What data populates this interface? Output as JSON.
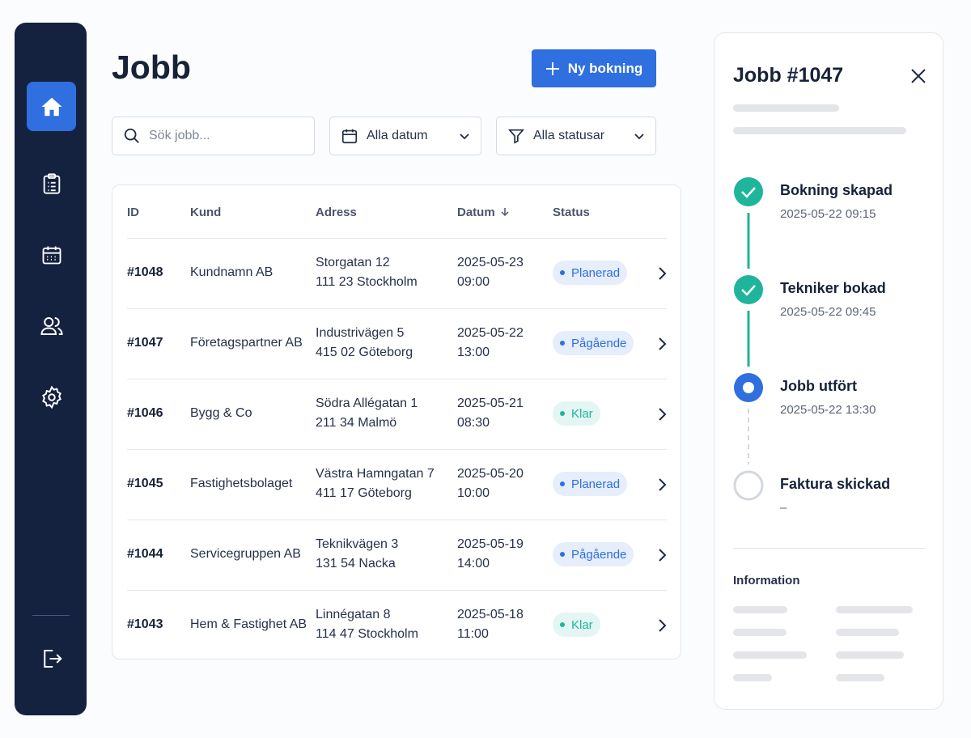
{
  "header": {
    "title": "Jobb",
    "new_button": "Ny bokning"
  },
  "filters": {
    "search_placeholder": "Sök jobb...",
    "date": "Alla datum",
    "status": "Alla statusar"
  },
  "table": {
    "columns": [
      "ID",
      "Kund",
      "Adress",
      "Datum",
      "Status"
    ],
    "rows": [
      {
        "id": "#1048",
        "customer": "Kundnamn AB",
        "street": "Storgatan 12",
        "city": "111 23 Stockholm",
        "date": "2025-05-23",
        "time": "09:00",
        "status": "Planerad",
        "status_color": "#2f6fdf"
      },
      {
        "id": "#1047",
        "customer": "Företagspartner AB",
        "street": "Industrivägen 5",
        "city": "415 02 Göteborg",
        "date": "2025-05-22",
        "time": "13:00",
        "status": "Pågående",
        "status_color": "#2f6fdf"
      },
      {
        "id": "#1046",
        "customer": "Bygg & Co",
        "street": "Södra Allégatan 1",
        "city": "211 34 Malmö",
        "date": "2025-05-21",
        "time": "08:30",
        "status": "Klar",
        "status_color": "#1fb59a"
      },
      {
        "id": "#1045",
        "customer": "Fastighetsbolaget",
        "street": "Västra Hamngatan 7",
        "city": "411 17 Göteborg",
        "date": "2025-05-20",
        "time": "10:00",
        "status": "Planerad",
        "status_color": "#2f6fdf"
      },
      {
        "id": "#1044",
        "customer": "Servicegruppen AB",
        "street": "Teknikvägen 3",
        "city": "131 54 Nacka",
        "date": "2025-05-19",
        "time": "14:00",
        "status": "Pågående",
        "status_color": "#2f6fdf"
      },
      {
        "id": "#1043",
        "customer": "Hem & Fastighet AB",
        "street": "Linnégatan 8",
        "city": "114 47 Stockholm",
        "date": "2025-05-18",
        "time": "11:00",
        "status": "Klar",
        "status_color": "#1fb59a"
      }
    ]
  },
  "detail": {
    "title": "Jobb #1047",
    "timeline": [
      {
        "label": "Bokning skapad",
        "time": "2025-05-22 09:15",
        "state": "done"
      },
      {
        "label": "Tekniker bokad",
        "time": "2025-05-22 09:45",
        "state": "done"
      },
      {
        "label": "Jobb utfört",
        "time": "2025-05-22 13:30",
        "state": "current"
      },
      {
        "label": "Faktura skickad",
        "time": "–",
        "state": "pending"
      }
    ],
    "info_heading": "Information"
  }
}
